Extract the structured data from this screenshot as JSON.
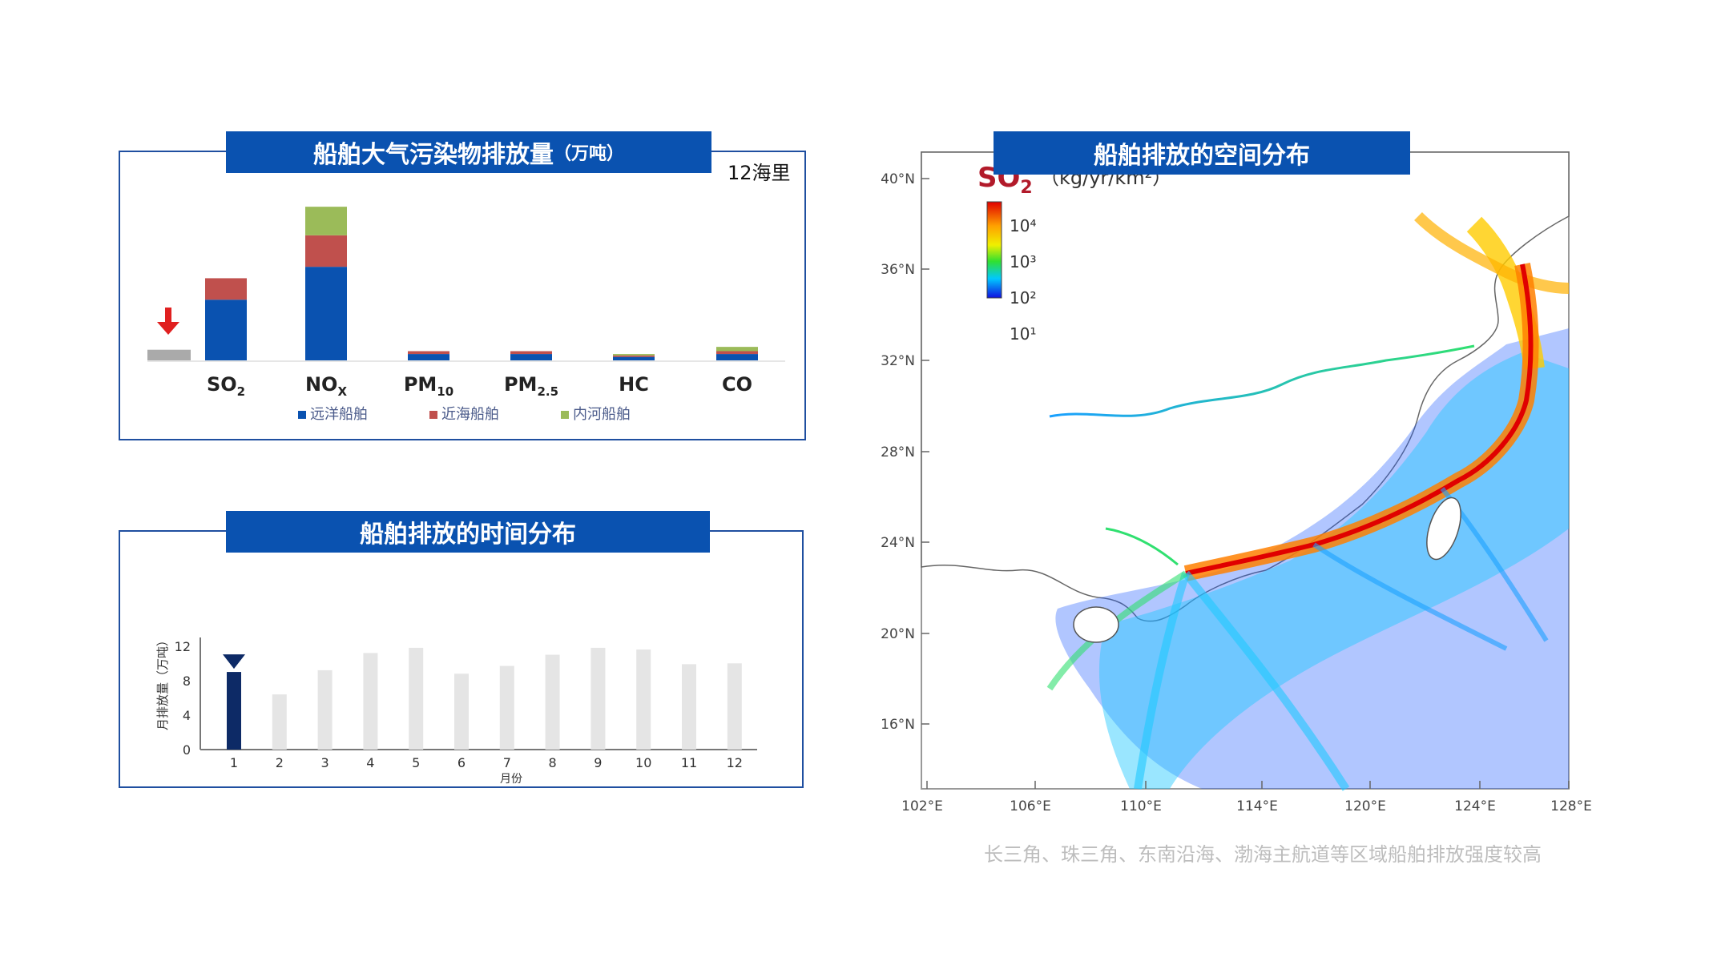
{
  "panel1": {
    "title_main": "船舶大气污染物排放量",
    "title_unit": "（万吨）",
    "note": "12海里"
  },
  "panel2": {
    "title": "船舶排放的时间分布"
  },
  "panel3": {
    "title": "船舶排放的空间分布"
  },
  "caption": "长三角、珠三角、东南沿海、渤海主航道等区域船舶排放强度较高",
  "colors": {
    "banner": "#0a52b0",
    "ocean": "#0a52b0",
    "coastal": "#c0504d",
    "river": "#9bbb59",
    "accent_red": "#e02020",
    "bar_grey": "#aaaaaa",
    "month_dark": "#0d2a66",
    "month_light": "#e5e5e5"
  },
  "chart_data": [
    {
      "type": "bar",
      "stacked": true,
      "categories": [
        "SO",
        "NO",
        "PM",
        "PM",
        "HC",
        "CO"
      ],
      "category_subscripts": [
        "2",
        "X",
        "10",
        "2.5",
        "",
        ""
      ],
      "series": [
        {
          "name": "远洋船舶",
          "values": [
            43,
            66,
            5,
            5,
            3,
            5
          ]
        },
        {
          "name": "近海船舶",
          "values": [
            15,
            22,
            2,
            2,
            1,
            2
          ]
        },
        {
          "name": "内河船舶",
          "values": [
            0,
            20,
            0,
            0,
            1,
            3
          ]
        }
      ],
      "reference_bar_value": 8,
      "legend_position": "bottom",
      "ylim": [
        0,
        112
      ]
    },
    {
      "type": "bar",
      "categories": [
        "1",
        "2",
        "3",
        "4",
        "5",
        "6",
        "7",
        "8",
        "9",
        "10",
        "11",
        "12"
      ],
      "values": [
        9,
        6.4,
        9.2,
        11.2,
        11.8,
        8.8,
        9.7,
        11.0,
        11.8,
        11.6,
        9.9,
        10.0
      ],
      "highlight_index": 0,
      "ylabel": "月排放量（万吨）",
      "xlabel": "月份",
      "yticks": [
        0,
        4,
        8,
        12
      ],
      "ylim": [
        0,
        13
      ]
    },
    {
      "type": "heatmap",
      "title": "SO",
      "title_subscript": "2",
      "unit": "（kg/yr/km²）",
      "colorbar_labels": [
        "10⁴",
        "10³",
        "10²",
        "10¹"
      ],
      "lat_ticks": [
        "40°N",
        "36°N",
        "32°N",
        "28°N",
        "24°N",
        "20°N",
        "16°N"
      ],
      "lon_ticks": [
        "102°E",
        "106°E",
        "110°E",
        "114°E",
        "120°E",
        "124°E",
        "128°E"
      ]
    }
  ]
}
